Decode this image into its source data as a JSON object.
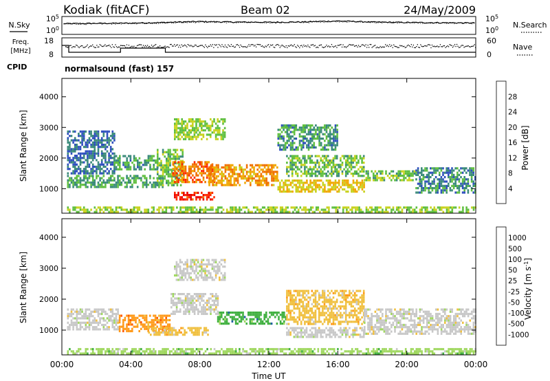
{
  "header": {
    "station": "Kodiak (fitACF)",
    "beam": "Beam 02",
    "date": "24/May/2009"
  },
  "panel_labels": {
    "nsky": "N.Sky",
    "nsearch": "N.Search",
    "freq_line1": "Freq.",
    "freq_line2": "[MHz]",
    "nave": "Nave",
    "cpid": "CPID",
    "cpid_value": "normalsound (fast) 157"
  },
  "colors": {
    "power_scale": [
      "#1a1aff",
      "#2f4fbf",
      "#3a8a7a",
      "#5fbf3f",
      "#c8d21e",
      "#f0a800",
      "#f07000",
      "#ff2a00",
      "#e80000"
    ],
    "velocity_scale": [
      "#ff0000",
      "#ff5a00",
      "#ff9a1a",
      "#f0c040",
      "#c8c8c8",
      "#a0d860",
      "#40b040",
      "#2060a0",
      "#1a3aa0"
    ]
  },
  "chart_data": [
    {
      "type": "line",
      "name": "noise-panel",
      "left_axis": {
        "ticks": [
          "10^5",
          "10^0"
        ]
      },
      "right_axis": {
        "ticks": [
          "10^5",
          "10^0"
        ]
      },
      "series": [
        {
          "name": "N.Sky",
          "x": [
            0,
            2,
            4,
            6,
            8,
            10,
            12,
            14,
            16,
            18,
            20,
            22,
            24
          ],
          "values": [
            1200,
            1500,
            1800,
            3000,
            6000,
            4000,
            3500,
            4500,
            9000,
            4000,
            3000,
            2500,
            2000
          ]
        },
        {
          "name": "N.Search",
          "x": [
            0,
            2,
            4,
            6,
            8,
            10,
            12,
            14,
            16,
            18,
            20,
            22,
            24
          ],
          "values": [
            800,
            1000,
            1300,
            2000,
            4000,
            3000,
            2500,
            3000,
            6000,
            3000,
            2000,
            1800,
            1500
          ]
        }
      ]
    },
    {
      "type": "line",
      "name": "freq-nave-panel",
      "left_axis": {
        "ticks": [
          "18",
          "8"
        ]
      },
      "right_axis": {
        "ticks": [
          "60",
          "0"
        ]
      },
      "series": [
        {
          "name": "Freq.",
          "x": [
            0,
            0.4,
            0.4,
            3.4,
            3.4,
            6.0,
            6.0,
            24
          ],
          "values": [
            16,
            16,
            11,
            11,
            14,
            14,
            11,
            11
          ]
        },
        {
          "name": "Nave",
          "x": [
            0,
            3,
            6,
            9,
            12,
            15,
            18,
            21,
            24
          ],
          "values": [
            36,
            35,
            37,
            36,
            35,
            36,
            37,
            36,
            36
          ]
        }
      ]
    },
    {
      "type": "heatmap",
      "name": "power-panel",
      "xlabel": "",
      "ylabel": "Slant Range [km]",
      "xlim": [
        0,
        24
      ],
      "ylim": [
        200,
        4600
      ],
      "y_ticks": [
        1000,
        2000,
        3000,
        4000
      ],
      "colorbar": {
        "label": "Power [dB]",
        "ticks": [
          4,
          8,
          12,
          16,
          20,
          24,
          28
        ],
        "range": [
          0,
          32
        ]
      },
      "regions": [
        {
          "t0": 0.3,
          "t1": 5.8,
          "r0": 1050,
          "r1": 1450,
          "value": 10
        },
        {
          "t0": 0.3,
          "t1": 3.0,
          "r0": 1500,
          "r1": 2900,
          "value": 6
        },
        {
          "t0": 3.0,
          "t1": 5.5,
          "r0": 1600,
          "r1": 2100,
          "value": 9
        },
        {
          "t0": 5.5,
          "t1": 7.0,
          "r0": 1100,
          "r1": 2300,
          "value": 12
        },
        {
          "t0": 6.4,
          "t1": 8.8,
          "r0": 1200,
          "r1": 1900,
          "value": 24
        },
        {
          "t0": 6.5,
          "t1": 8.8,
          "r0": 680,
          "r1": 900,
          "value": 29
        },
        {
          "t0": 8.5,
          "t1": 12.5,
          "r0": 1100,
          "r1": 1800,
          "value": 21
        },
        {
          "t0": 12.5,
          "t1": 17.5,
          "r0": 900,
          "r1": 1300,
          "value": 18
        },
        {
          "t0": 13.0,
          "t1": 17.5,
          "r0": 1400,
          "r1": 2100,
          "value": 12
        },
        {
          "t0": 6.5,
          "t1": 9.5,
          "r0": 2600,
          "r1": 3300,
          "value": 14
        },
        {
          "t0": 12.5,
          "t1": 16.0,
          "r0": 2300,
          "r1": 3100,
          "value": 9
        },
        {
          "t0": 17.5,
          "t1": 20.5,
          "r0": 1300,
          "r1": 1600,
          "value": 13
        },
        {
          "t0": 20.5,
          "t1": 24,
          "r0": 900,
          "r1": 1700,
          "value": 8
        },
        {
          "t0": 0.3,
          "t1": 24,
          "r0": 260,
          "r1": 420,
          "value": 14
        }
      ]
    },
    {
      "type": "heatmap",
      "name": "velocity-panel",
      "xlabel": "Time UT",
      "ylabel": "Slant Range [km]",
      "xlim": [
        0,
        24
      ],
      "ylim": [
        200,
        4600
      ],
      "x_ticks": [
        "00:00",
        "04:00",
        "08:00",
        "12:00",
        "16:00",
        "20:00",
        "00:00"
      ],
      "y_ticks": [
        1000,
        2000,
        3000,
        4000
      ],
      "colorbar": {
        "label": "Velocity [m s^-1]",
        "ticks": [
          "1000",
          "500",
          "100",
          "50",
          "25",
          "-25",
          "-50",
          "-100",
          "-500",
          "-1000"
        ]
      },
      "regions": [
        {
          "t0": 0.3,
          "t1": 3.3,
          "r0": 1050,
          "r1": 1700,
          "color_index": 4
        },
        {
          "t0": 3.3,
          "t1": 6.3,
          "r0": 1000,
          "r1": 1500,
          "color_index": 2
        },
        {
          "t0": 5.0,
          "t1": 8.5,
          "r0": 850,
          "r1": 1100,
          "color_index": 3
        },
        {
          "t0": 6.3,
          "t1": 9.0,
          "r0": 1500,
          "r1": 2200,
          "color_index": 4
        },
        {
          "t0": 9.0,
          "t1": 13.0,
          "r0": 1200,
          "r1": 1600,
          "color_index": 6
        },
        {
          "t0": 13.0,
          "t1": 17.5,
          "r0": 1200,
          "r1": 2300,
          "color_index": 3
        },
        {
          "t0": 13.0,
          "t1": 17.5,
          "r0": 800,
          "r1": 1100,
          "color_index": 4
        },
        {
          "t0": 17.5,
          "t1": 24,
          "r0": 900,
          "r1": 1700,
          "color_index": 4
        },
        {
          "t0": 6.5,
          "t1": 9.5,
          "r0": 2600,
          "r1": 3300,
          "color_index": 4
        },
        {
          "t0": 0.3,
          "t1": 24,
          "r0": 260,
          "r1": 420,
          "color_index": 5
        }
      ]
    }
  ]
}
